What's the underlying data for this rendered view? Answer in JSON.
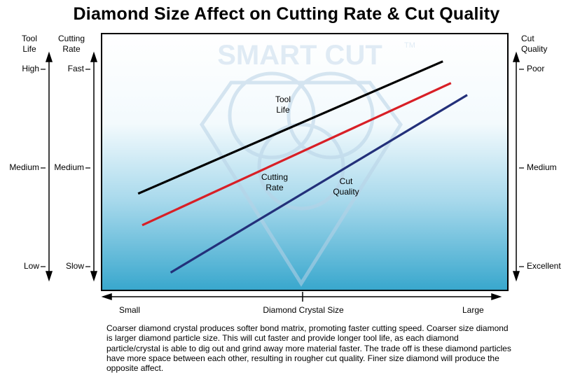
{
  "title": "Diamond Size Affect on Cutting Rate & Cut Quality",
  "watermark": {
    "text": "SMART CUT",
    "tm": "TM"
  },
  "axes": {
    "tool_life": {
      "header_line1": "Tool",
      "header_line2": "Life",
      "ticks": [
        "High",
        "Medium",
        "Low"
      ]
    },
    "cutting_rate": {
      "header_line1": "Cutting",
      "header_line2": "Rate",
      "ticks": [
        "Fast",
        "Medium",
        "Slow"
      ]
    },
    "cut_quality": {
      "header_line1": "Cut",
      "header_line2": "Quality",
      "ticks": [
        "Poor",
        "Medium",
        "Excellent"
      ]
    },
    "x": {
      "left": "Small",
      "center": "Diamond Crystal Size",
      "right": "Large"
    }
  },
  "description": "Coarser diamond crystal produces softer bond matrix, promoting faster cutting speed. Coarser size diamond is larger diamond particle size. This will cut faster and provide longer tool life, as each diamond particle/crystal is able to dig out and grind away more material faster. The trade off is these diamond particles have more space between each other, resulting in rougher cut quality. Finer size diamond will produce the opposite affect.",
  "colors": {
    "tool_life": "#000000",
    "cutting_rate": "#d81f26",
    "cut_quality": "#23307a",
    "bg_top": "#ffffff",
    "bg_bottom": "#3eacd0"
  },
  "chart_data": {
    "type": "line",
    "title": "Diamond Size Affect on Cutting Rate & Cut Quality",
    "xlabel": "Diamond Crystal Size",
    "x_range_labels": [
      "Small",
      "Large"
    ],
    "xlim": [
      0,
      1
    ],
    "ylim": [
      0,
      1
    ],
    "series": [
      {
        "name": "Tool Life",
        "label_line1": "Tool",
        "label_line2": "Life",
        "color": "#000000",
        "points": [
          [
            0.09,
            0.37
          ],
          [
            0.84,
            1.04
          ]
        ]
      },
      {
        "name": "Cutting Rate",
        "label_line1": "Cutting",
        "label_line2": "Rate",
        "color": "#d81f26",
        "points": [
          [
            0.1,
            0.21
          ],
          [
            0.86,
            0.93
          ]
        ]
      },
      {
        "name": "Cut Quality",
        "label_line1": "Cut",
        "label_line2": "Quality",
        "color": "#23307a",
        "points": [
          [
            0.17,
            -0.03
          ],
          [
            0.9,
            0.87
          ]
        ]
      }
    ]
  }
}
